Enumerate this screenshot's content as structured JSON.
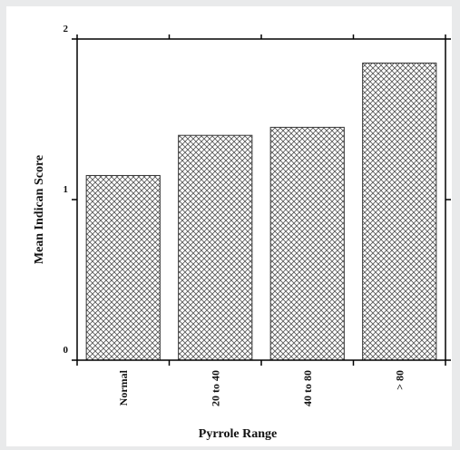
{
  "chart_data": {
    "type": "bar",
    "title": "",
    "xlabel": "Pyrrole Range",
    "ylabel": "Mean Indican Score",
    "categories": [
      "Normal",
      "20 to 40",
      "40 to 80",
      "> 80"
    ],
    "values": [
      1.15,
      1.4,
      1.45,
      1.85
    ],
    "ylim": [
      0,
      2
    ],
    "yticks": [
      "0",
      "1",
      "2"
    ],
    "grid": false,
    "bar_fill": "crosshatch",
    "colors": {
      "bar_edge": "#333333",
      "hatch": "#555555",
      "axis": "#000000"
    }
  }
}
